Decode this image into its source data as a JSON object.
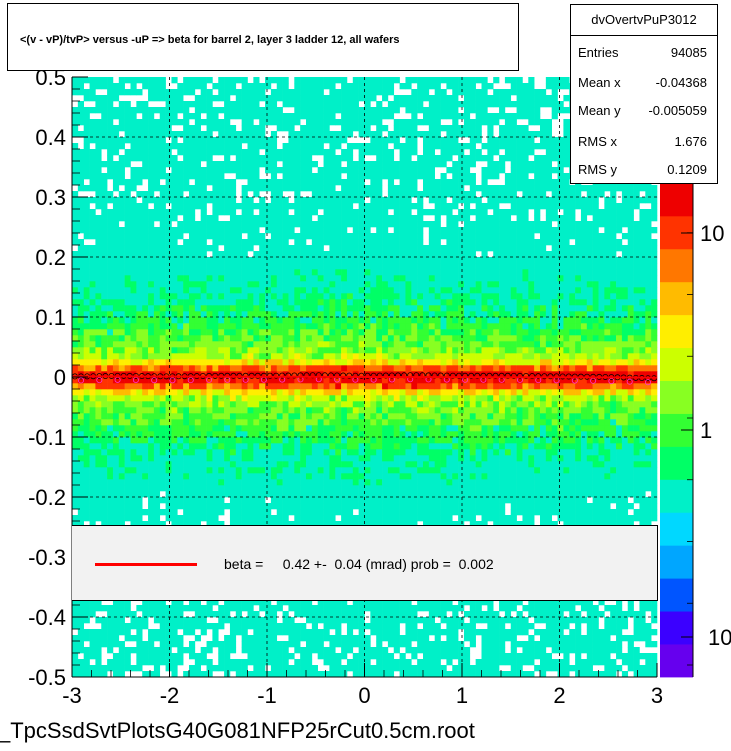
{
  "title": "<(v - vP)/tvP> versus  -uP => beta for barrel 2, layer 3 ladder 12, all wafers",
  "stats": {
    "name": "dvOvertvPuP3012",
    "rows": [
      {
        "key": "Entries",
        "value": "94085"
      },
      {
        "key": "Mean x",
        "value": "-0.04368"
      },
      {
        "key": "Mean y",
        "value": "-0.005059"
      },
      {
        "key": "RMS x",
        "value": "1.676"
      },
      {
        "key": "RMS y",
        "value": "0.1209"
      }
    ]
  },
  "fit": {
    "text": "beta =     0.42 +-  0.04 (mrad) prob =  0.002",
    "color": "#ff0000"
  },
  "footer": "_TpcSsdSvtPlotsG40G081NFP25rCut0.5cm.root",
  "chart_data": {
    "type": "heatmap",
    "xlim": [
      -3,
      3
    ],
    "ylim": [
      -0.5,
      0.5
    ],
    "x_ticks": [
      "-3",
      "-2",
      "-1",
      "0",
      "1",
      "2",
      "3"
    ],
    "y_ticks": [
      "-0.5",
      "-0.4",
      "-0.3",
      "-0.2",
      "-0.1",
      "0",
      "0.1",
      "0.2",
      "0.3",
      "0.4",
      "0.5"
    ],
    "grid": true,
    "colorbar": {
      "scale": "log",
      "labels": [
        "10",
        "1",
        "10"
      ]
    },
    "profile": {
      "x": [
        -2.9,
        -2.5,
        -2.0,
        -1.5,
        -1.0,
        -0.5,
        0.0,
        0.5,
        1.0,
        1.5,
        2.0,
        2.5,
        2.9
      ],
      "y": [
        0.001,
        0.002,
        0.001,
        0.002,
        0.002,
        0.003,
        0.002,
        0.003,
        0.002,
        0.002,
        0.001,
        0.0,
        -0.002
      ]
    },
    "fit_line": {
      "x": [
        -3,
        3
      ],
      "y": [
        0.001,
        -0.001
      ]
    },
    "palette": [
      "#6600ee",
      "#3b00ff",
      "#0055ff",
      "#00a6ff",
      "#00d8ff",
      "#00f0c8",
      "#00ff66",
      "#33ff33",
      "#88ff22",
      "#ccff00",
      "#ffee00",
      "#ffbb00",
      "#ff7700",
      "#ff3300",
      "#ee0000"
    ]
  }
}
